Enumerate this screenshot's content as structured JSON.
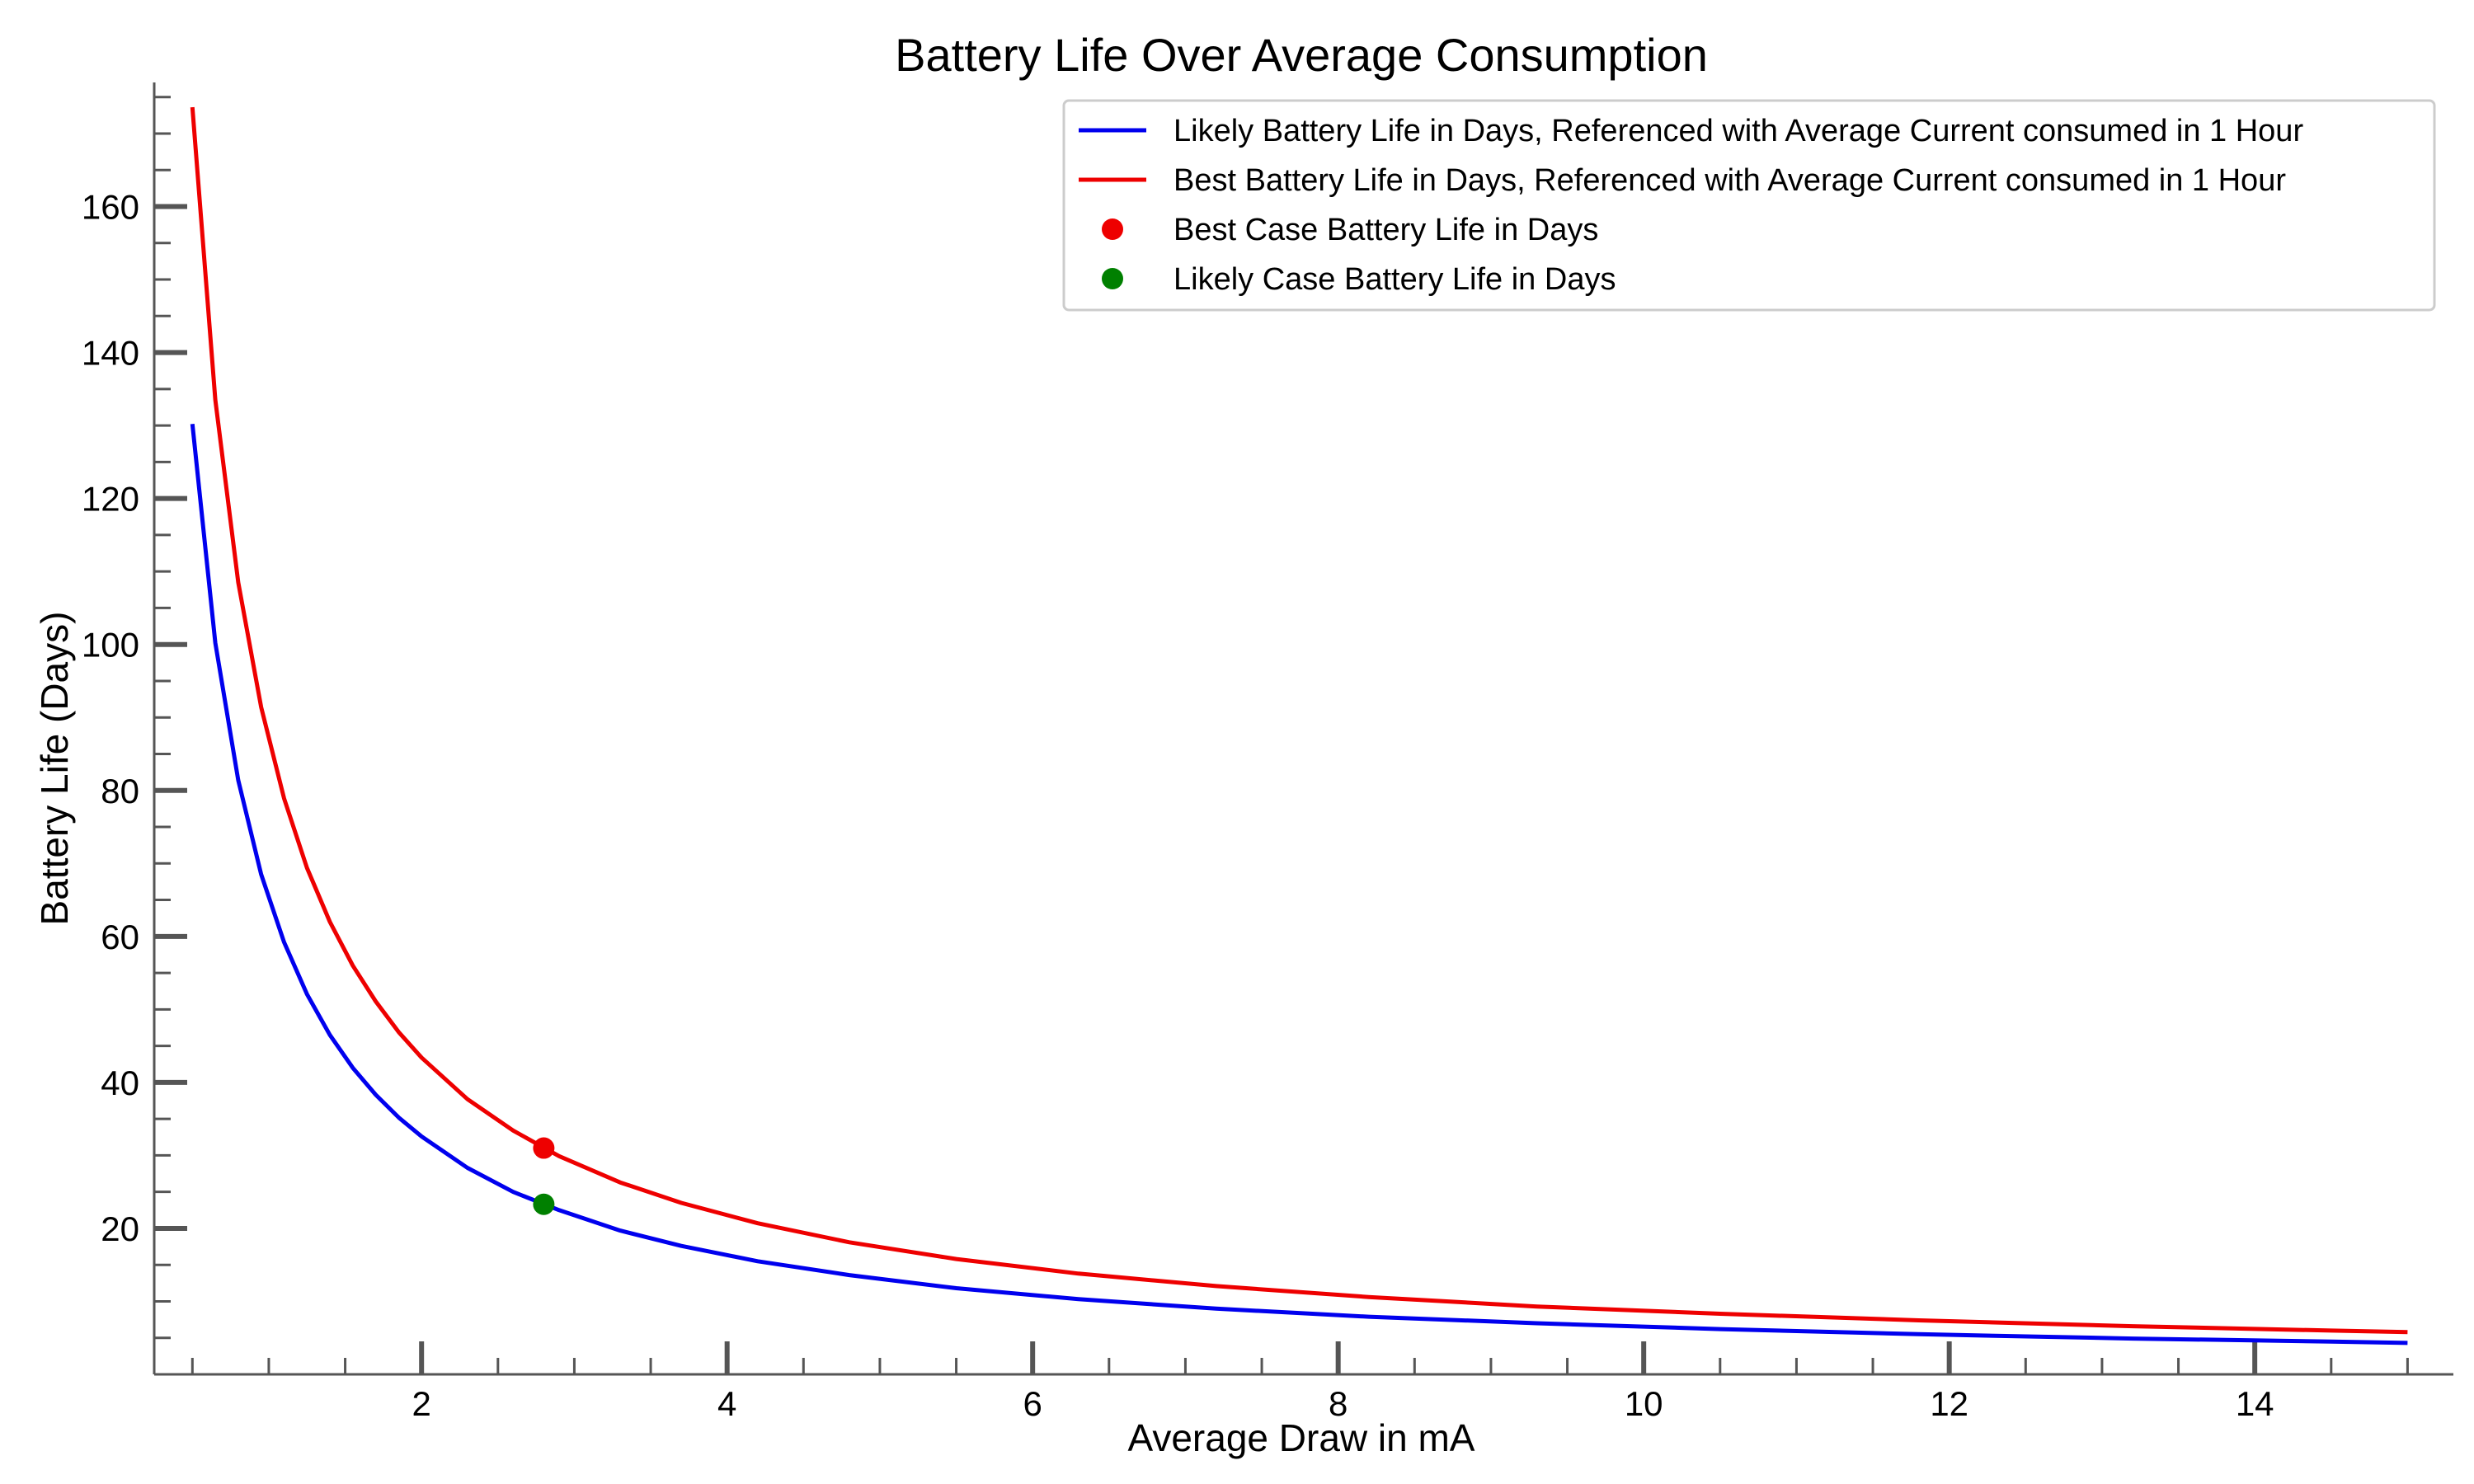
{
  "chart_data": {
    "type": "line",
    "title": "Battery Life Over Average Consumption",
    "xlabel": "Average Draw in mA",
    "ylabel": "Battery Life (Days)",
    "xlim": [
      0.25,
      15.3
    ],
    "ylim": [
      0,
      177
    ],
    "x_ticks": [
      2,
      4,
      6,
      8,
      10,
      12,
      14
    ],
    "y_ticks": [
      20,
      40,
      60,
      80,
      100,
      120,
      140,
      160
    ],
    "grid": false,
    "legend_position": "upper right",
    "series": [
      {
        "name": "Likely Battery Life in Days, Referenced with Average Current consumed in 1 Hour",
        "style": "line",
        "color": "#0000ee",
        "x": [
          0.5,
          0.65,
          0.8,
          0.95,
          1.1,
          1.25,
          1.4,
          1.55,
          1.7,
          1.85,
          2.0,
          2.3,
          2.6,
          2.9,
          3.3,
          3.7,
          4.2,
          4.8,
          5.5,
          6.3,
          7.2,
          8.2,
          9.3,
          10.5,
          11.8,
          13.2,
          14.5,
          15.0
        ],
        "y": [
          130.2,
          100.2,
          81.4,
          68.5,
          59.2,
          52.1,
          46.5,
          42.0,
          38.3,
          35.2,
          32.6,
          28.3,
          25.0,
          22.5,
          19.7,
          17.6,
          15.5,
          13.6,
          11.8,
          10.3,
          9.0,
          7.9,
          7.0,
          6.2,
          5.5,
          4.9,
          4.5,
          4.3
        ]
      },
      {
        "name": "Best Battery Life in Days, Referenced with Average Current consumed in 1 Hour",
        "style": "line",
        "color": "#ee0000",
        "x": [
          0.5,
          0.65,
          0.8,
          0.95,
          1.1,
          1.25,
          1.4,
          1.55,
          1.7,
          1.85,
          2.0,
          2.3,
          2.6,
          2.9,
          3.3,
          3.7,
          4.2,
          4.8,
          5.5,
          6.3,
          7.2,
          8.2,
          9.3,
          10.5,
          11.8,
          13.2,
          14.5,
          15.0
        ],
        "y": [
          173.6,
          133.5,
          108.5,
          91.4,
          78.9,
          69.4,
          62.0,
          56.0,
          51.1,
          46.9,
          43.4,
          37.7,
          33.4,
          29.9,
          26.3,
          23.5,
          20.7,
          18.1,
          15.8,
          13.8,
          12.1,
          10.6,
          9.3,
          8.3,
          7.4,
          6.6,
          6.0,
          5.8
        ]
      },
      {
        "name": "Best Case Battery Life in Days",
        "style": "marker",
        "color": "#ee0000",
        "x": [
          2.8
        ],
        "y": [
          31.0
        ]
      },
      {
        "name": "Likely Case Battery Life in Days",
        "style": "marker",
        "color": "#008000",
        "x": [
          2.8
        ],
        "y": [
          23.3
        ]
      }
    ]
  }
}
